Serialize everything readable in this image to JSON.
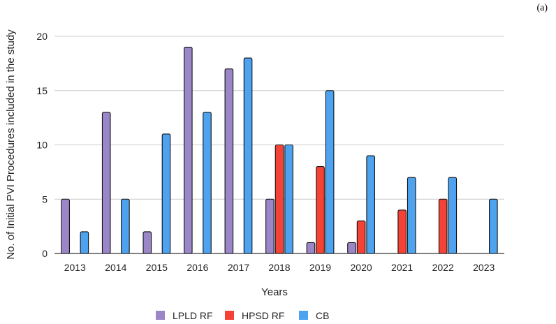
{
  "panel_label": "(a)",
  "chart_data": {
    "type": "bar",
    "title": "",
    "xlabel": "Years",
    "ylabel": "No. of Initial PVI Procedures included in the study",
    "ylim": [
      0,
      20
    ],
    "yticks": [
      0,
      5,
      10,
      15,
      20
    ],
    "grid": true,
    "legend_position": "bottom",
    "categories": [
      "2013",
      "2014",
      "2015",
      "2016",
      "2017",
      "2018",
      "2019",
      "2020",
      "2021",
      "2022",
      "2023"
    ],
    "series": [
      {
        "name": "LPLD RF",
        "color": "#9b87c8",
        "values": [
          5,
          13,
          2,
          19,
          17,
          5,
          1,
          1,
          0,
          0,
          0
        ]
      },
      {
        "name": "HPSD RF",
        "color": "#f44336",
        "values": [
          0,
          0,
          0,
          0,
          0,
          10,
          8,
          3,
          4,
          5,
          0
        ]
      },
      {
        "name": "CB",
        "color": "#4da3f0",
        "values": [
          2,
          5,
          11,
          13,
          18,
          10,
          15,
          9,
          7,
          7,
          5
        ]
      }
    ]
  }
}
